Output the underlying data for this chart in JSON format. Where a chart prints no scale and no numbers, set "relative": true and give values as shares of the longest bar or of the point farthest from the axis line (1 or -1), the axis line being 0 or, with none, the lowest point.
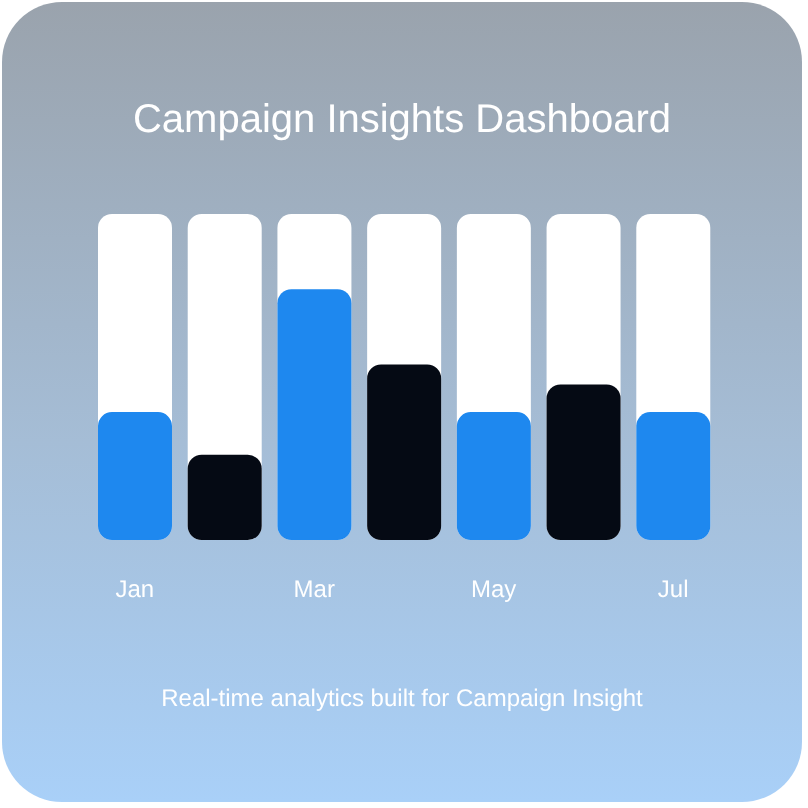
{
  "chart_data": {
    "type": "bar",
    "title": "Campaign Insights Dashboard",
    "annotations": [
      "Real-time analytics built for Campaign Insight"
    ],
    "relative": true,
    "categories": [
      "Jan",
      null,
      "Mar",
      null,
      "May",
      null,
      "Jul"
    ],
    "values": [
      0.51,
      0.34,
      1,
      0.7,
      0.51,
      0.62,
      0.51
    ],
    "colors": [
      "#1e88ef",
      "#050a14",
      "#1e88ef",
      "#050a14",
      "#1e88ef",
      "#050a14",
      "#1e88ef"
    ]
  }
}
